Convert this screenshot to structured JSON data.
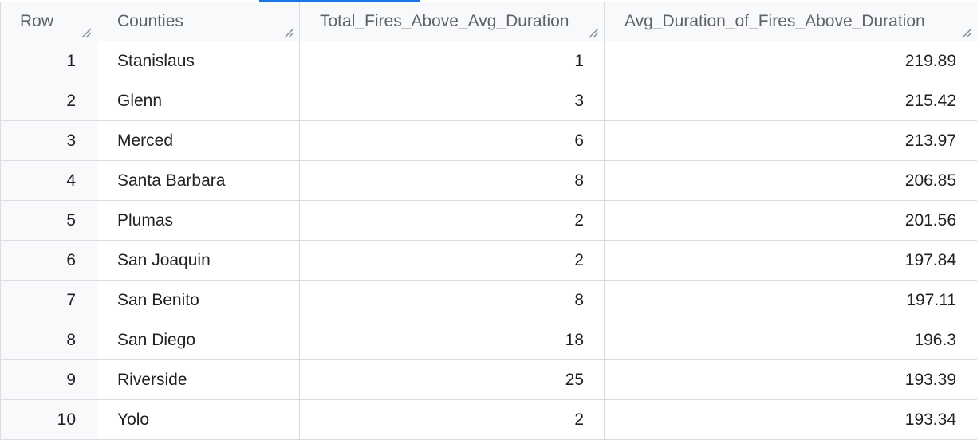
{
  "table": {
    "columns": [
      "Row",
      "Counties",
      "Total_Fires_Above_Avg_Duration",
      "Avg_Duration_of_Fires_Above_Duration"
    ],
    "rows": [
      {
        "row": "1",
        "county": "Stanislaus",
        "total": "1",
        "avg": "219.89"
      },
      {
        "row": "2",
        "county": "Glenn",
        "total": "3",
        "avg": "215.42"
      },
      {
        "row": "3",
        "county": "Merced",
        "total": "6",
        "avg": "213.97"
      },
      {
        "row": "4",
        "county": "Santa Barbara",
        "total": "8",
        "avg": "206.85"
      },
      {
        "row": "5",
        "county": "Plumas",
        "total": "2",
        "avg": "201.56"
      },
      {
        "row": "6",
        "county": "San Joaquin",
        "total": "2",
        "avg": "197.84"
      },
      {
        "row": "7",
        "county": "San Benito",
        "total": "8",
        "avg": "197.11"
      },
      {
        "row": "8",
        "county": "San Diego",
        "total": "18",
        "avg": "196.3"
      },
      {
        "row": "9",
        "county": "Riverside",
        "total": "25",
        "avg": "193.39"
      },
      {
        "row": "10",
        "county": "Yolo",
        "total": "2",
        "avg": "193.34"
      }
    ]
  },
  "icons": {
    "column_resize": "resize-handle-icon"
  },
  "colors": {
    "header_bg": "#f8f9fa",
    "border": "#dadce0",
    "header_text": "#5f6368",
    "cell_text": "#202124",
    "accent": "#1a73e8"
  }
}
